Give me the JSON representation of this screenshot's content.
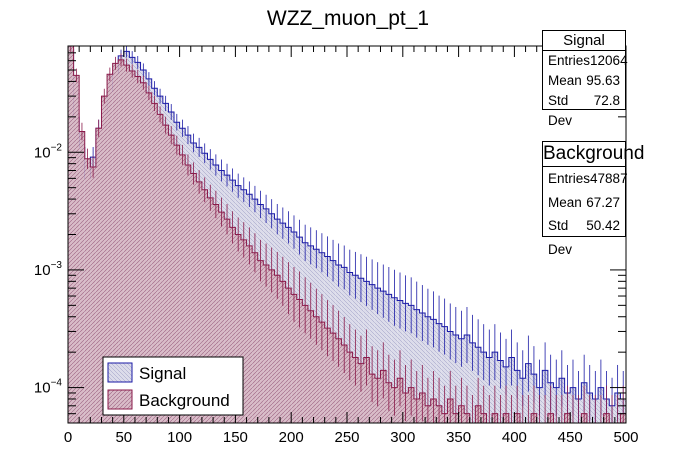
{
  "colors": {
    "signal_fill": "#dcdcea",
    "signal_line": "#1a1aa6",
    "background_fill": "#d9bcc8",
    "background_line": "#8a1a4a",
    "hatch": "#9a6080"
  },
  "chart_data": {
    "type": "histogram",
    "title": "WZZ_muon_pt_1",
    "xlabel": "",
    "ylabel": "",
    "xlim": [
      0,
      500
    ],
    "ylim": [
      5e-05,
      0.08
    ],
    "yscale": "log",
    "x_ticks": [
      "0",
      "50",
      "100",
      "150",
      "200",
      "250",
      "300",
      "350",
      "400",
      "450",
      "500"
    ],
    "y_ticks": [
      {
        "value": 0.0001,
        "base": "10",
        "exp": "−4"
      },
      {
        "value": 0.001,
        "base": "10",
        "exp": "−3"
      },
      {
        "value": 0.01,
        "base": "10",
        "exp": "−2"
      }
    ],
    "bin_width": 5,
    "legend": {
      "position": "bottom-left",
      "entries": [
        "Signal",
        "Background"
      ]
    },
    "series": [
      {
        "name": "Signal",
        "stats": {
          "title": "Signal",
          "rows": [
            {
              "label": "Entries",
              "value": "12064"
            },
            {
              "label": "Mean",
              "value": "95.63"
            },
            {
              "label": "Std Dev",
              "value": "72.8"
            }
          ]
        },
        "values": [
          0.075,
          0.02,
          0.011,
          0.006,
          0.0091,
          0.016,
          0.021,
          0.033,
          0.047,
          0.066,
          0.072,
          0.064,
          0.058,
          0.05,
          0.042,
          0.035,
          0.03,
          0.026,
          0.022,
          0.018,
          0.016,
          0.014,
          0.012,
          0.011,
          0.0098,
          0.0087,
          0.0078,
          0.007,
          0.0064,
          0.0058,
          0.0052,
          0.0048,
          0.0044,
          0.004,
          0.0036,
          0.0033,
          0.003,
          0.0027,
          0.0025,
          0.0023,
          0.0021,
          0.0019,
          0.0017,
          0.0016,
          0.0015,
          0.0014,
          0.0013,
          0.0012,
          0.0011,
          0.00105,
          0.00095,
          0.0009,
          0.00085,
          0.0008,
          0.00075,
          0.0007,
          0.00066,
          0.00062,
          0.00058,
          0.00055,
          0.00052,
          0.0005,
          0.00046,
          0.00043,
          0.0004,
          0.00038,
          0.00035,
          0.00033,
          0.0003,
          0.00028,
          0.00026,
          0.00028,
          0.00024,
          0.00022,
          0.0002,
          0.00018,
          0.0002,
          0.00017,
          0.00015,
          0.00018,
          0.00014,
          0.00012,
          0.00016,
          0.00013,
          0.0001,
          0.00014,
          0.00011,
          0.0001,
          0.00012,
          9e-05,
          0.0001,
          8e-05,
          0.00011,
          9e-05,
          8e-05,
          0.0001,
          8e-05,
          7e-05,
          9e-05,
          8e-05
        ]
      },
      {
        "name": "Background",
        "stats": {
          "title": "Background",
          "rows": [
            {
              "label": "Entries",
              "value": "47887"
            },
            {
              "label": "Mean",
              "value": "67.27"
            },
            {
              "label": "Std Dev",
              "value": "50.42"
            }
          ]
        },
        "values": [
          0.08,
          0.045,
          0.015,
          0.0088,
          0.0075,
          0.016,
          0.03,
          0.046,
          0.057,
          0.061,
          0.055,
          0.049,
          0.044,
          0.039,
          0.032,
          0.026,
          0.021,
          0.017,
          0.014,
          0.0115,
          0.0095,
          0.0078,
          0.0066,
          0.0056,
          0.0048,
          0.0041,
          0.0036,
          0.0031,
          0.0027,
          0.0023,
          0.002,
          0.0018,
          0.0016,
          0.0014,
          0.0012,
          0.0011,
          0.001,
          0.0009,
          0.0008,
          0.0007,
          0.00062,
          0.00056,
          0.0005,
          0.00045,
          0.0004,
          0.00036,
          0.00032,
          0.00029,
          0.00026,
          0.00023,
          0.0002,
          0.00018,
          0.00016,
          0.00018,
          0.00013,
          0.00012,
          0.00014,
          0.00011,
          0.0001,
          0.00012,
          9e-05,
          0.0001,
          8e-05,
          9e-05,
          7e-05,
          8e-05,
          7e-05,
          6e-05,
          8e-05,
          6e-05,
          7e-05,
          6e-05,
          5e-05,
          7e-05,
          6e-05,
          5e-05,
          6e-05,
          5e-05,
          6e-05,
          5e-05,
          6e-05,
          5e-05,
          5e-05,
          6e-05,
          5e-05,
          5e-05,
          6e-05,
          5e-05,
          5e-05,
          6e-05,
          5e-05,
          5e-05,
          6e-05,
          5e-05,
          5e-05,
          5e-05,
          6e-05,
          5e-05,
          5e-05,
          6e-05
        ]
      }
    ]
  }
}
